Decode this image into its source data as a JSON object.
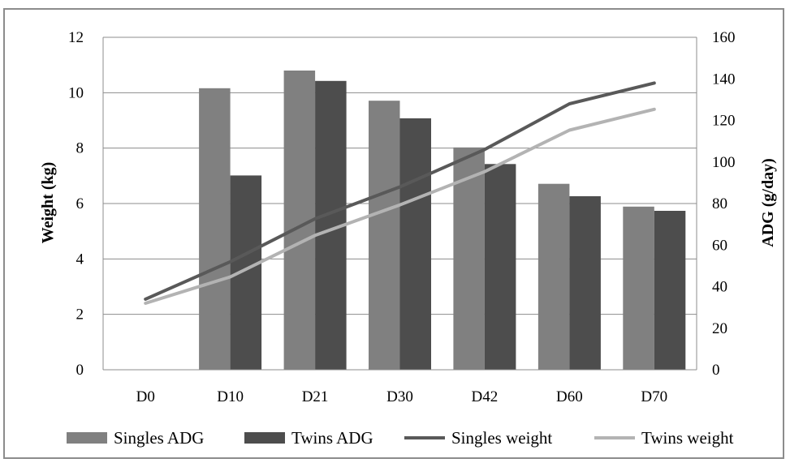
{
  "chart_data": {
    "type": "bar",
    "categories": [
      "D0",
      "D10",
      "D21",
      "D30",
      "D42",
      "D60",
      "D70"
    ],
    "xlabel": "",
    "ylabel": "Weight (kg)",
    "y2label": "ADG (g/day)",
    "ylim": [
      0,
      12
    ],
    "y2lim": [
      0,
      160
    ],
    "yticks": [
      "0",
      "2",
      "4",
      "6",
      "8",
      "10",
      "12"
    ],
    "y2ticks": [
      "0",
      "20",
      "40",
      "60",
      "80",
      "100",
      "120",
      "140",
      "160"
    ],
    "grid": true,
    "legend_position": "bottom",
    "bars": [
      {
        "name": "Singles ADG",
        "color": "#808080",
        "axis": "right",
        "values": [
          null,
          135.5,
          144,
          129.5,
          107,
          89.5,
          78.5
        ]
      },
      {
        "name": "Twins ADG",
        "color": "#4d4d4d",
        "axis": "right",
        "values": [
          null,
          93.5,
          139,
          121,
          99,
          83.5,
          76.5
        ]
      }
    ],
    "lines": [
      {
        "name": "Singles weight",
        "color": "#595959",
        "axis": "left",
        "values": [
          2.55,
          3.9,
          5.45,
          6.6,
          7.95,
          9.6,
          10.35
        ]
      },
      {
        "name": "Twins weight",
        "color": "#b3b3b3",
        "axis": "left",
        "values": [
          2.4,
          3.35,
          4.85,
          5.95,
          7.15,
          8.65,
          9.4
        ]
      }
    ]
  }
}
